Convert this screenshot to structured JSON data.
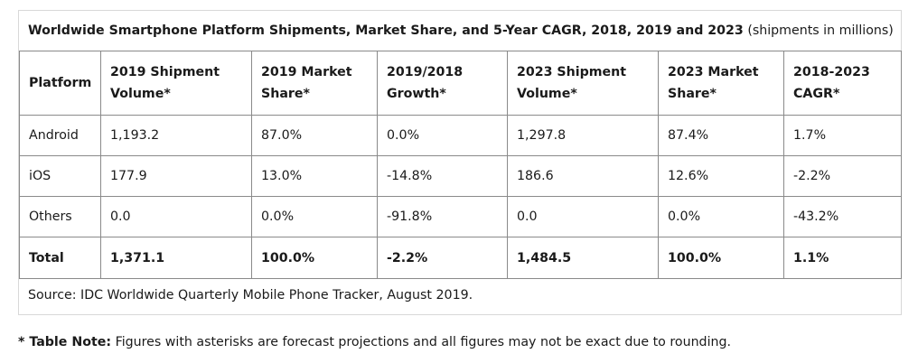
{
  "title": {
    "main": "Worldwide Smartphone Platform Shipments, Market Share, and 5-Year CAGR, 2018, 2019 and 2023",
    "suffix": "(shipments in millions)"
  },
  "table": {
    "headers": [
      "Platform",
      "2019 Shipment Volume*",
      "2019 Market Share*",
      "2019/2018 Growth*",
      "2023 Shipment Volume*",
      "2023 Market Share*",
      "2018-2023 CAGR*"
    ],
    "rows": [
      [
        "Android",
        "1,193.2",
        "87.0%",
        "0.0%",
        "1,297.8",
        "87.4%",
        "1.7%"
      ],
      [
        "iOS",
        "177.9",
        "13.0%",
        "-14.8%",
        "186.6",
        "12.6%",
        "-2.2%"
      ],
      [
        "Others",
        "0.0",
        "0.0%",
        "-91.8%",
        "0.0",
        "0.0%",
        "-43.2%"
      ],
      [
        "Total",
        "1,371.1",
        "100.0%",
        "-2.2%",
        "1,484.5",
        "100.0%",
        "1.1%"
      ]
    ]
  },
  "source": "Source: IDC Worldwide Quarterly Mobile Phone Tracker, August 2019.",
  "note": {
    "label": "* Table Note:",
    "text": "Figures with asterisks are forecast projections and all figures may not be exact due to rounding."
  }
}
